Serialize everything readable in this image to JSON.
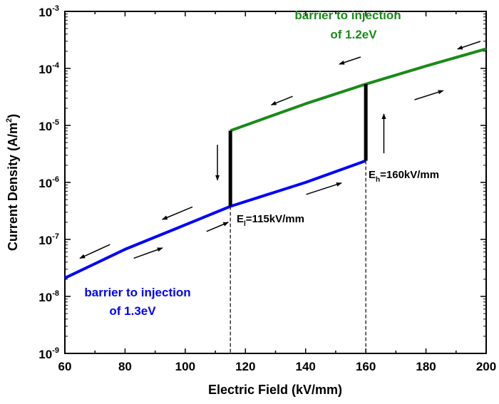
{
  "chart_data": {
    "type": "line",
    "title": "",
    "xlabel": "Electric Field (kV/mm)",
    "ylabel": "Current Density (A/m",
    "ylabel_sup": "2",
    "ylabel_end": ")",
    "xlim": [
      60,
      200
    ],
    "ylim": [
      1e-09,
      0.001
    ],
    "yscale": "log",
    "x_ticks": [
      60,
      80,
      100,
      120,
      140,
      160,
      180,
      200
    ],
    "y_ticks": [
      {
        "base": "10",
        "exp": "-3"
      },
      {
        "base": "10",
        "exp": "-4"
      },
      {
        "base": "10",
        "exp": "-5"
      },
      {
        "base": "10",
        "exp": "-6"
      },
      {
        "base": "10",
        "exp": "-7"
      },
      {
        "base": "10",
        "exp": "-8"
      },
      {
        "base": "10",
        "exp": "-9"
      }
    ],
    "series": [
      {
        "name": "barrier to injection of 1.3eV",
        "color": "#0000ff",
        "x": [
          60,
          80,
          100,
          115,
          140,
          160
        ],
        "y": [
          2.1e-08,
          6.7e-08,
          1.8e-07,
          3.8e-07,
          1e-06,
          2.4e-06
        ]
      },
      {
        "name": "barrier to injection of 1.2eV",
        "color": "#1a8a1a",
        "x": [
          115,
          140,
          160,
          180,
          200
        ],
        "y": [
          8.1e-06,
          2.4e-05,
          5.3e-05,
          0.00011,
          0.00022
        ]
      },
      {
        "name": "",
        "color": "#000000",
        "x": [
          115,
          115
        ],
        "y": [
          3.8e-07,
          8.1e-06
        ]
      },
      {
        "name": "",
        "color": "#000000",
        "x": [
          160,
          160
        ],
        "y": [
          2.4e-06,
          5.3e-05
        ]
      }
    ],
    "vlines": [
      115,
      160
    ],
    "arrows": [
      [
        198.1,
        -3.525,
        190.5,
        -3.66
      ],
      [
        158.3,
        -3.8,
        151.2,
        -3.925
      ],
      [
        135.7,
        -4.49,
        128.6,
        -4.64
      ],
      [
        176.2,
        -4.55,
        185.7,
        -4.39
      ],
      [
        166,
        -5.49,
        166,
        -4.8
      ],
      [
        110.7,
        -5.34,
        110.7,
        -5.96
      ],
      [
        140.2,
        -6.21,
        151.9,
        -6.01
      ],
      [
        107.1,
        -6.86,
        114.3,
        -6.7
      ],
      [
        102.4,
        -6.43,
        92.4,
        -6.65
      ],
      [
        82.9,
        -7.33,
        92.4,
        -7.15
      ],
      [
        75,
        -7.09,
        65,
        -7.33
      ]
    ],
    "annotations": {
      "green_line1": "barrier to injection",
      "green_line2": "of 1.2eV",
      "blue_line1": "barrier to injection",
      "blue_line2": "of 1.3eV",
      "el_main": "E",
      "el_sub": "l",
      "el_rest": "=115kV/mm",
      "eh_main": "E",
      "eh_sub": "h",
      "eh_rest": "=160kV/mm"
    },
    "grid": false
  }
}
